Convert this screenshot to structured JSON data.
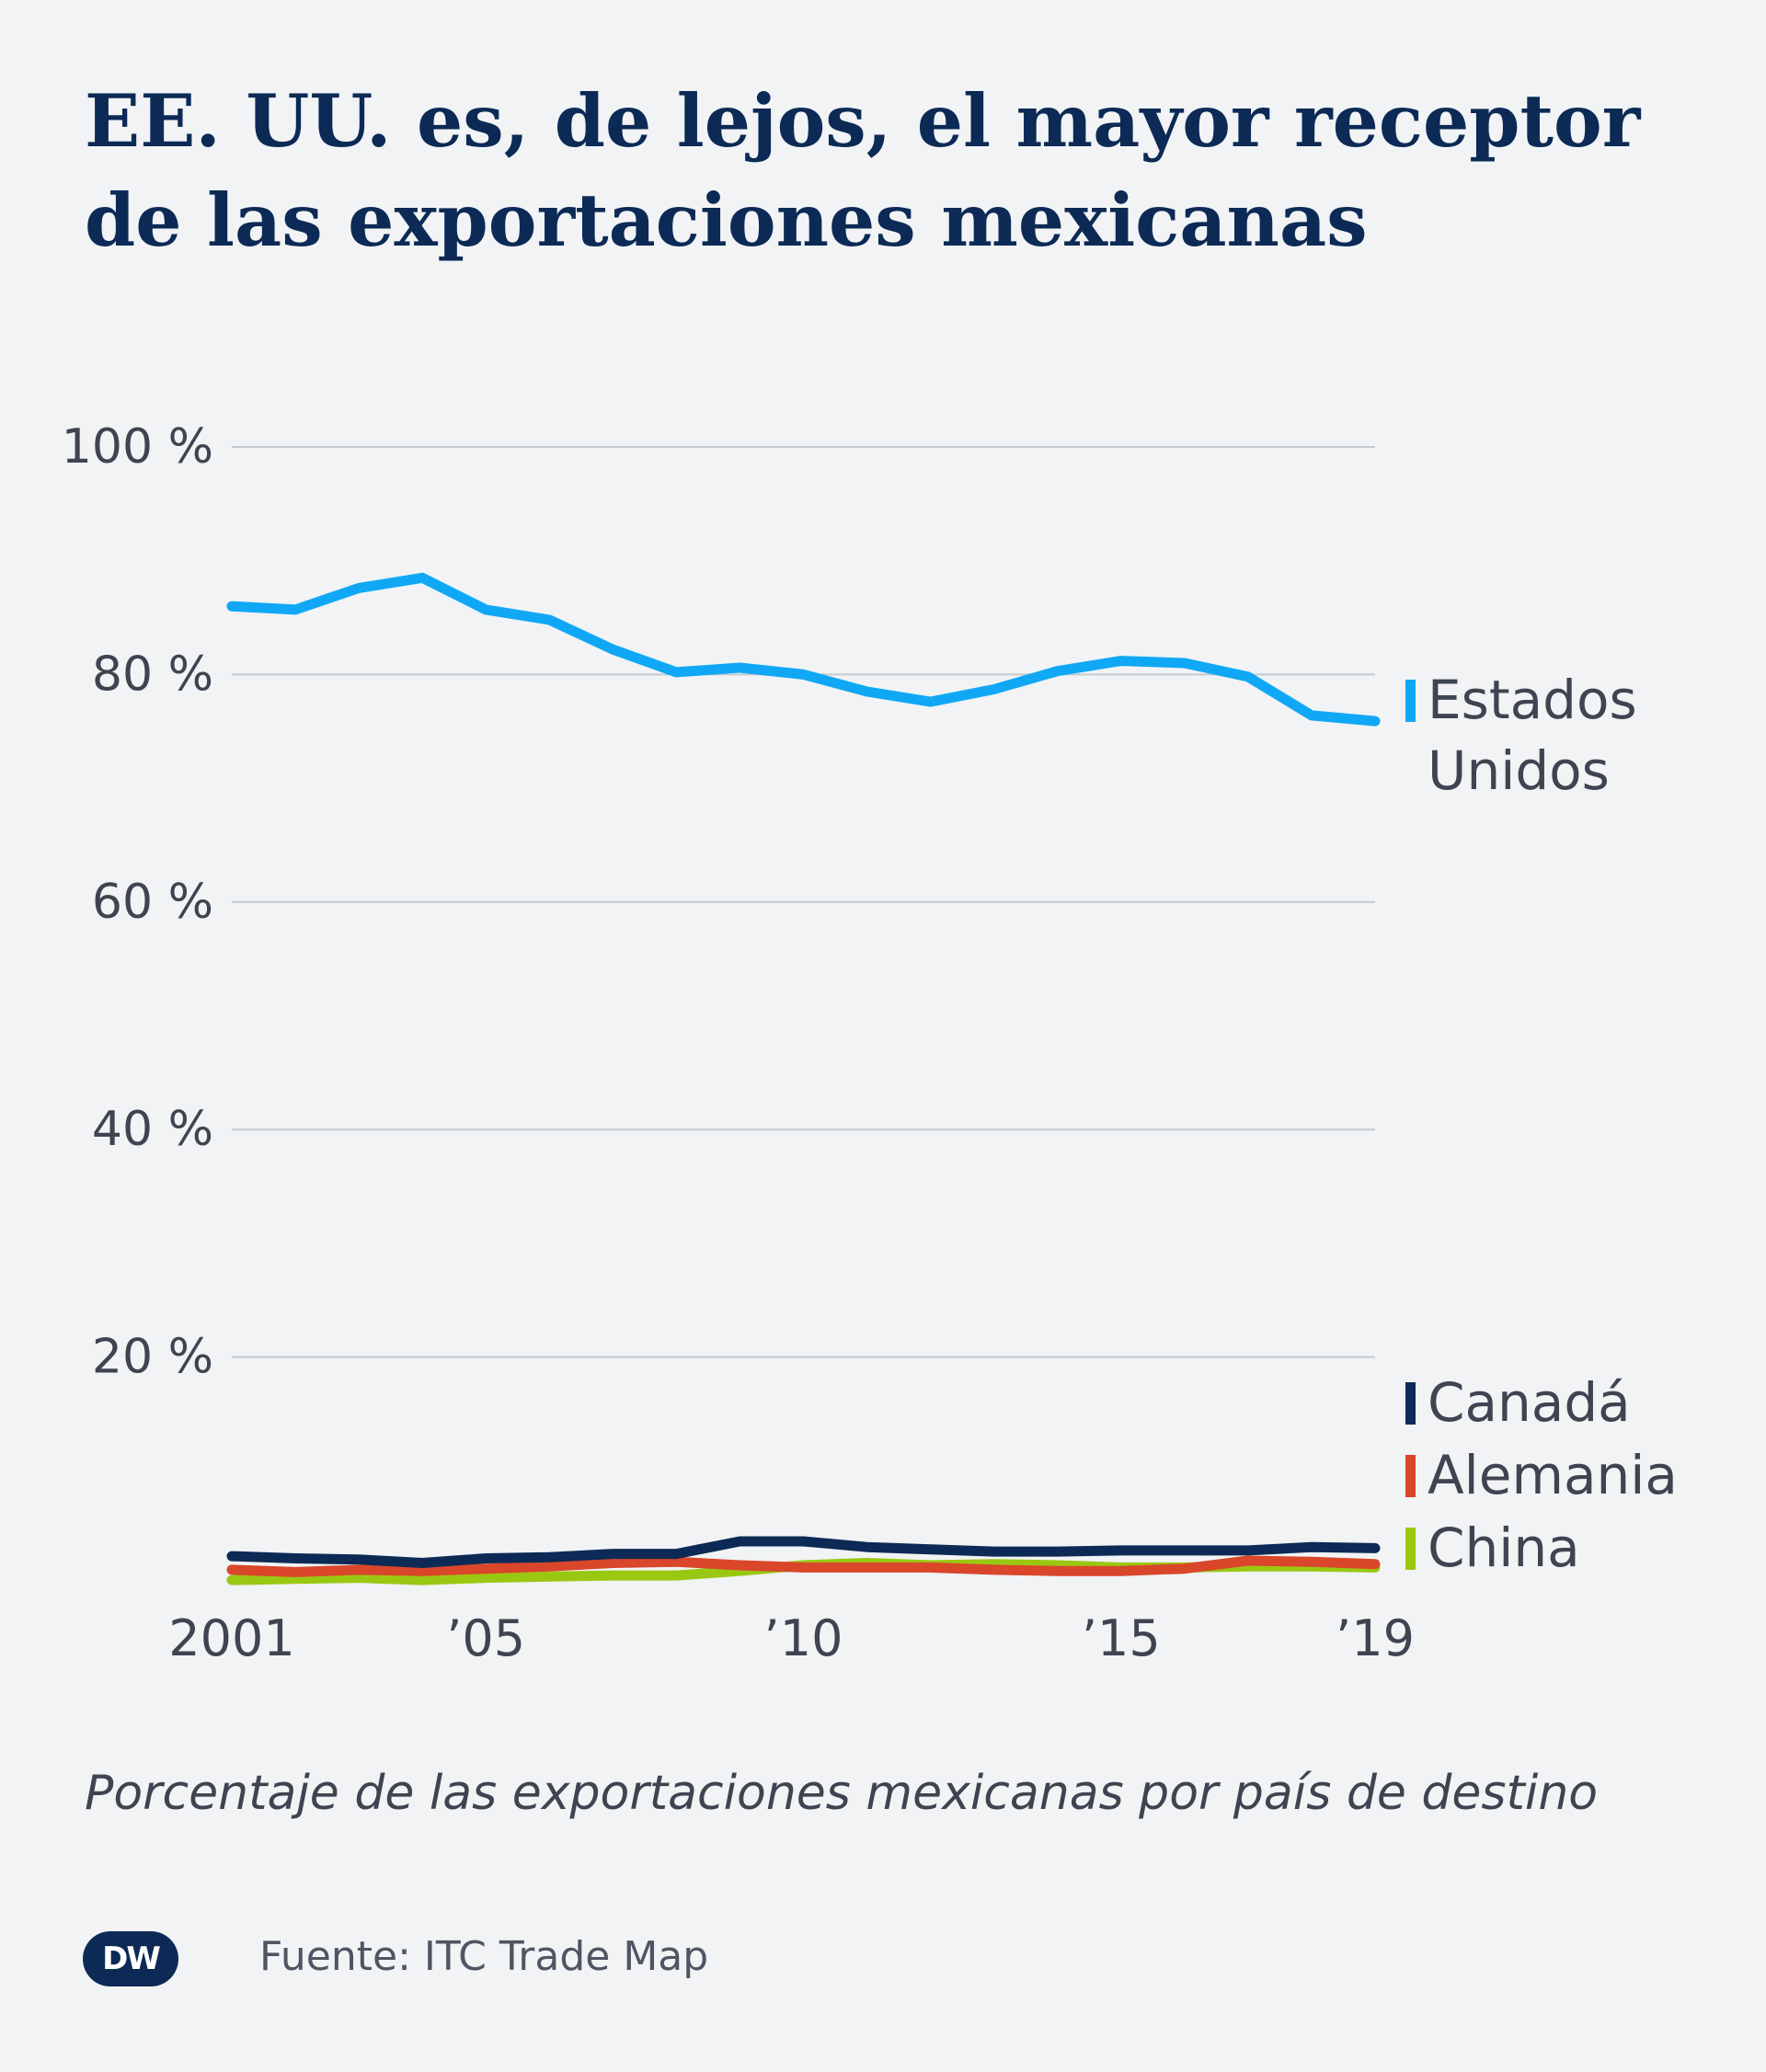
{
  "title": "EE. UU. es, de lejos, el mayor receptor de las exportaciones mexicanas",
  "subtitle": "Porcentaje de las exportaciones mexicanas por país de destino",
  "source": "Fuente: ITC Trade Map",
  "logo_text": "DW",
  "chart_data": {
    "type": "line",
    "x": [
      2001,
      2002,
      2003,
      2004,
      2005,
      2006,
      2007,
      2008,
      2009,
      2010,
      2011,
      2012,
      2013,
      2014,
      2015,
      2016,
      2017,
      2018,
      2019
    ],
    "x_tick_values": [
      2001,
      2005,
      2010,
      2015,
      2019
    ],
    "x_tick_labels": [
      "2001",
      "’05",
      "’10",
      "’15",
      "’19"
    ],
    "y_ticks": [
      20,
      40,
      60,
      80,
      100
    ],
    "y_tick_labels": [
      "20 %",
      "40 %",
      "60 %",
      "80 %",
      "100 %"
    ],
    "ylim": [
      0,
      100
    ],
    "grid": true,
    "legend_placement": "right, at line ends",
    "series": [
      {
        "name": "Estados Unidos",
        "color": "#10a8f5",
        "values": [
          86.0,
          85.7,
          87.6,
          88.5,
          85.7,
          84.8,
          82.2,
          80.2,
          80.6,
          80.0,
          78.5,
          77.6,
          78.7,
          80.3,
          81.2,
          81.0,
          79.8,
          76.4,
          75.9
        ]
      },
      {
        "name": "Canadá",
        "color": "#0c2a55",
        "values": [
          2.5,
          2.3,
          2.2,
          1.9,
          2.3,
          2.4,
          2.7,
          2.7,
          3.8,
          3.8,
          3.3,
          3.1,
          2.9,
          2.9,
          3.0,
          3.0,
          3.0,
          3.3,
          3.2
        ]
      },
      {
        "name": "Alemania",
        "color": "#d9462a",
        "values": [
          1.3,
          1.1,
          1.3,
          1.2,
          1.4,
          1.6,
          1.9,
          2.0,
          1.7,
          1.5,
          1.5,
          1.5,
          1.3,
          1.2,
          1.2,
          1.4,
          2.1,
          2.0,
          1.8
        ]
      },
      {
        "name": "China",
        "color": "#9ac812",
        "values": [
          0.4,
          0.5,
          0.6,
          0.4,
          0.6,
          0.7,
          0.8,
          0.8,
          1.2,
          1.7,
          1.9,
          1.7,
          1.8,
          1.7,
          1.5,
          1.5,
          1.6,
          1.6,
          1.5
        ]
      }
    ]
  }
}
